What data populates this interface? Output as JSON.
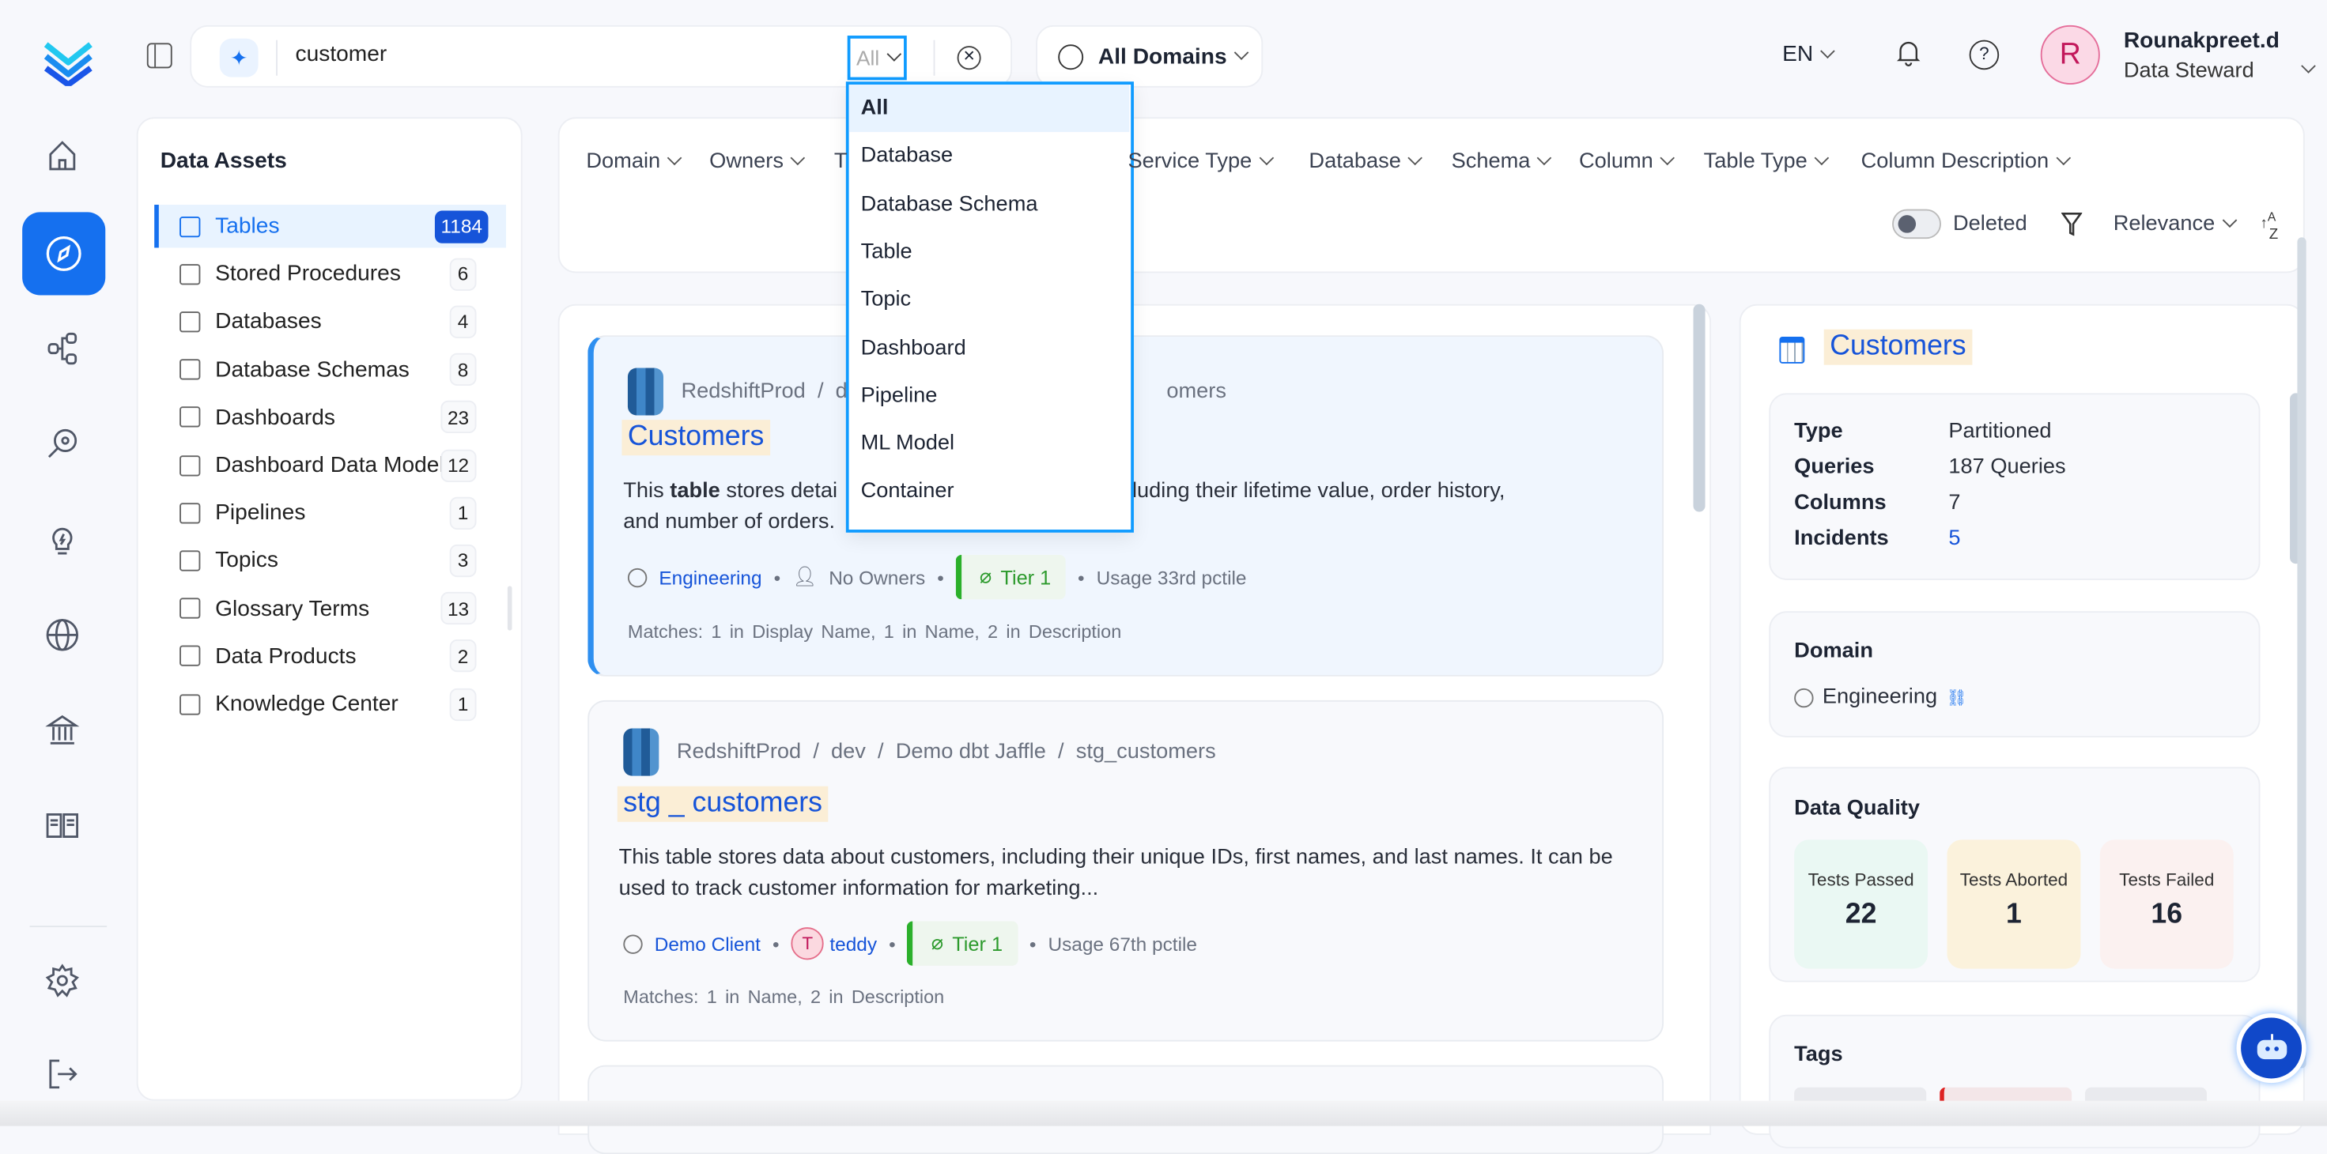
{
  "search": {
    "query": "customer",
    "scope": "All",
    "domain_selector": "All Domains"
  },
  "header": {
    "language": "EN",
    "user_initial": "R",
    "user_name": "Rounakpreet.d",
    "user_role": "Data Steward"
  },
  "scope_dropdown": {
    "options": [
      "All",
      "Database",
      "Database Schema",
      "Table",
      "Topic",
      "Dashboard",
      "Pipeline",
      "ML Model",
      "Container"
    ],
    "selected": "All"
  },
  "rail": {
    "items": [
      "home-icon",
      "explore-icon",
      "lineage-icon",
      "observability-icon",
      "insights-icon",
      "domains-icon",
      "governance-icon",
      "glossary-icon",
      "settings-icon",
      "logout-icon"
    ],
    "active": "explore-icon"
  },
  "data_assets": {
    "title": "Data Assets",
    "items": [
      {
        "label": "Tables",
        "count": "1184",
        "icon": "table-icon"
      },
      {
        "label": "Stored Procedures",
        "count": "6",
        "icon": "stored-procedure-icon"
      },
      {
        "label": "Databases",
        "count": "4",
        "icon": "database-icon"
      },
      {
        "label": "Database Schemas",
        "count": "8",
        "icon": "schema-icon"
      },
      {
        "label": "Dashboards",
        "count": "23",
        "icon": "dashboard-icon"
      },
      {
        "label": "Dashboard Data Models",
        "count": "12",
        "icon": "data-model-icon"
      },
      {
        "label": "Pipelines",
        "count": "1",
        "icon": "pipeline-icon"
      },
      {
        "label": "Topics",
        "count": "3",
        "icon": "topic-icon"
      },
      {
        "label": "Glossary Terms",
        "count": "13",
        "icon": "glossary-icon"
      },
      {
        "label": "Data Products",
        "count": "2",
        "icon": "data-product-icon"
      },
      {
        "label": "Knowledge Center",
        "count": "1",
        "icon": "knowledge-center-icon"
      }
    ]
  },
  "filters": {
    "items": [
      "Domain",
      "Owners",
      "T",
      "Service Type",
      "Database",
      "Schema",
      "Column",
      "Table Type",
      "Column Description"
    ],
    "deleted_label": "Deleted",
    "deleted_on": false,
    "sort": "Relevance"
  },
  "results": [
    {
      "breadcrumb": [
        "RedshiftProd",
        "d",
        "omers"
      ],
      "title": "Customers",
      "desc_pre": "This ",
      "desc_bold": "table",
      "desc_post": " stores detai",
      "desc_tail": "rs, including their lifetime value, order history,",
      "desc_line2": "and number of orders.",
      "domain": "Engineering",
      "owner": "No Owners",
      "tier": "Tier 1",
      "usage": "Usage 33rd pctile",
      "matches": "Matches:  1 in Display Name,  1 in Name,  2 in Description"
    },
    {
      "breadcrumb": [
        "RedshiftProd",
        "dev",
        "Demo dbt Jaffle",
        "stg_customers"
      ],
      "title": "stg_customers",
      "title_display": "stg _ customers",
      "desc": "This table stores data about customers, including their unique IDs, first names, and last names. It can be used to track customer information for marketing...",
      "domain": "Demo Client",
      "owner_initial": "T",
      "owner": "teddy",
      "tier": "Tier 1",
      "usage": "Usage 67th pctile",
      "matches": "Matches:  1 in Name,  2 in Description"
    }
  ],
  "details": {
    "title": "Customers",
    "info": [
      {
        "label": "Type",
        "value": "Partitioned"
      },
      {
        "label": "Queries",
        "value": "187 Queries"
      },
      {
        "label": "Columns",
        "value": "7"
      },
      {
        "label": "Incidents",
        "value": "5"
      }
    ],
    "domain_title": "Domain",
    "domain": "Engineering",
    "dq_title": "Data Quality",
    "dq": [
      {
        "label": "Tests Passed",
        "value": "22",
        "color": "#eaf8f3"
      },
      {
        "label": "Tests Aborted",
        "value": "1",
        "color": "#fbf2dc"
      },
      {
        "label": "Tests Failed",
        "value": "16",
        "color": "#fbf1f0"
      }
    ],
    "tags_title": "Tags"
  },
  "colors": {
    "accent": "#1570ef",
    "dropdown_border": "#0f9bff",
    "highlight": "#fbeed6",
    "tier": "#2bb02b"
  }
}
